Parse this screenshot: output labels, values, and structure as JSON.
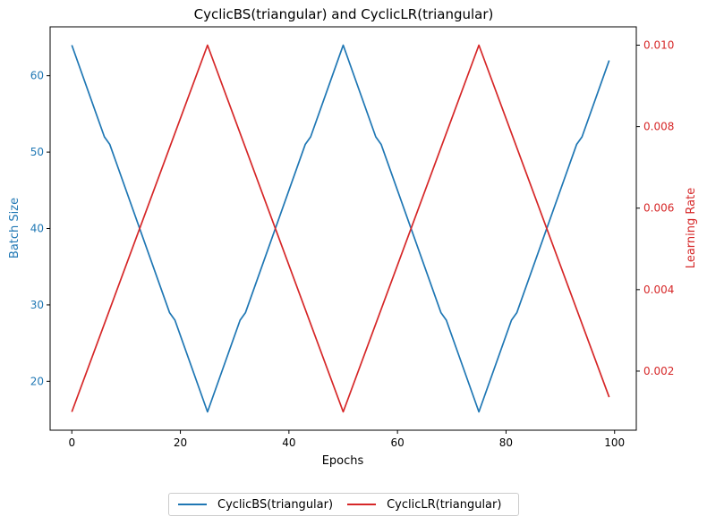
{
  "chart_data": {
    "type": "line",
    "title": "CyclicBS(triangular) and CyclicLR(triangular)",
    "xlabel": "Epochs",
    "xlim": [
      -4,
      104
    ],
    "xticks": [
      0,
      20,
      40,
      60,
      80,
      100
    ],
    "y_left": {
      "label": "Batch Size",
      "color": "#1f77b4",
      "lim": [
        13.6,
        66.4
      ],
      "ticks": [
        20,
        30,
        40,
        50,
        60
      ]
    },
    "y_right": {
      "label": "Learning Rate",
      "color": "#d62728",
      "lim": [
        0.00055,
        0.01045
      ],
      "ticks": [
        0.002,
        0.004,
        0.006,
        0.008,
        0.01
      ],
      "tick_labels": [
        "0.002",
        "0.004",
        "0.006",
        "0.008",
        "0.010"
      ]
    },
    "series": [
      {
        "name": "CyclicBS(triangular)",
        "axis": "left",
        "color": "#1f77b4",
        "x": [
          0,
          6,
          7,
          18,
          19,
          25,
          31,
          32,
          43,
          44,
          50,
          56,
          57,
          68,
          69,
          75,
          81,
          82,
          93,
          94,
          99
        ],
        "y": [
          64,
          52,
          51,
          29,
          28,
          16,
          28,
          29,
          51,
          52,
          64,
          52,
          51,
          29,
          28,
          16,
          28,
          29,
          51,
          52,
          62
        ]
      },
      {
        "name": "CyclicLR(triangular)",
        "axis": "right",
        "color": "#d62728",
        "x": [
          0,
          25,
          50,
          75,
          99
        ],
        "y": [
          0.001,
          0.01,
          0.001,
          0.01,
          0.00136
        ]
      }
    ],
    "legend_position": "bottom-center"
  }
}
